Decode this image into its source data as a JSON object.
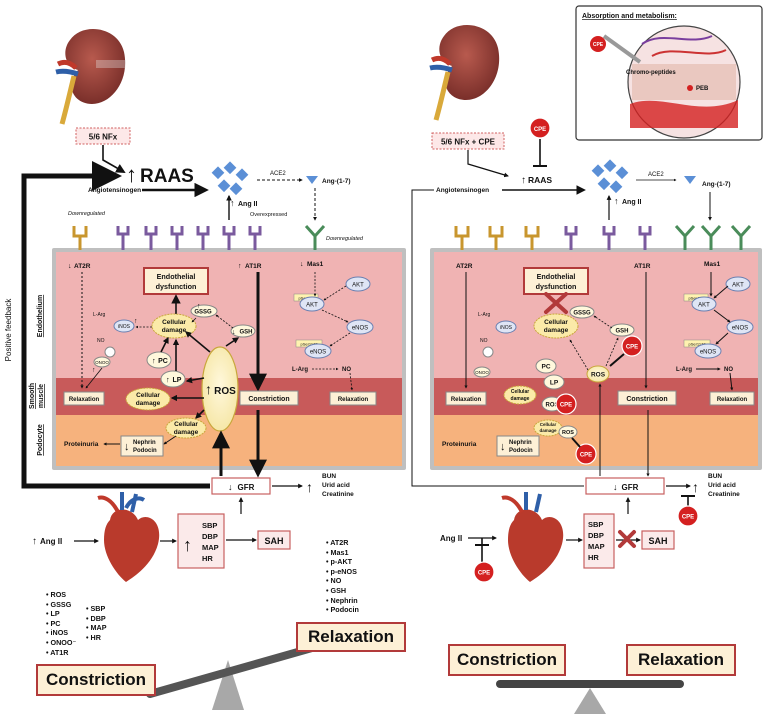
{
  "left": {
    "procedure": "5/6 NFx",
    "raas": "RAAS",
    "angiotensinogen": "Angiotensinogen",
    "ace2": "ACE2",
    "ang17": "Ang-(1-7)",
    "ang2": "Ang II",
    "overexpressed": "Overexpressed",
    "downregulated_left": "Downregulated",
    "downregulated_right": "Downregulated",
    "at2r": "AT2R",
    "at1r": "AT1R",
    "mas1": "Mas1",
    "endothelial_dysfunction_line1": "Endothelial",
    "endothelial_dysfunction_line2": "dysfunction",
    "gssg": "GSSG",
    "gsh": "GSH",
    "cellular": "Cellular",
    "damage": "damage",
    "inos": "iNOS",
    "larg": "L-Arg",
    "no": "NO",
    "onoo": "ONOO",
    "pc": "PC",
    "lp": "LP",
    "ros": "ROS",
    "relaxation_small": "Relaxation",
    "constriction_small": "Constriction",
    "akt": "AKT",
    "p_akt": "pSer473",
    "akt2": "AKT",
    "enos": "eNOS",
    "p_enos": "pSer1177",
    "enos2": "eNOS",
    "larg2": "L-Arg",
    "no2": "NO",
    "relaxation_small2": "Relaxation",
    "proteinuria": "Proteinuria",
    "nephrin": "Nephrin",
    "podocin": "Podocin",
    "gfr": "GFR",
    "bun": "BUN",
    "uric": "Urid acid",
    "creat": "Creatinine",
    "angii_in": "Ang II",
    "sbp": "SBP",
    "dbp": "DBP",
    "map": "MAP",
    "hr": "HR",
    "sah": "SAH",
    "positive_feedback": "Positive feedback",
    "endothelium": "Endothelium",
    "smooth_muscle_1": "Smooth",
    "smooth_muscle_2": "muscle",
    "podocyte": "Podocyte",
    "constriction_list_a": [
      "ROS",
      "GSSG",
      "LP",
      "PC",
      "iNOS",
      "ONOO⁻",
      "AT1R"
    ],
    "constriction_list_b": [
      "SBP",
      "DBP",
      "MAP",
      "HR"
    ],
    "relaxation_list": [
      "AT2R",
      "Mas1",
      "p-AKT",
      "p-eNOS",
      "NO",
      "GSH",
      "Nephrin",
      "Podocin"
    ],
    "constriction_big": "Constriction",
    "relaxation_big": "Relaxation"
  },
  "right": {
    "procedure": "5/6 NFx + CPE",
    "cpe": "CPE",
    "raas": "RAAS",
    "angiotensinogen": "Angiotensinogen",
    "ace2": "ACE2",
    "ang17": "Ang-(1-7)",
    "ang2": "Ang II",
    "at2r": "AT2R",
    "at1r": "AT1R",
    "mas1": "Mas1",
    "endothelial_dysfunction_line1": "Endothelial",
    "endothelial_dysfunction_line2": "dysfunction",
    "gssg": "GSSG",
    "gsh": "GSH",
    "cellular": "Cellular",
    "damage": "damage",
    "inos": "iNOS",
    "larg": "L-Arg",
    "no": "NO",
    "onoo": "ONOO",
    "pc": "PC",
    "lp": "LP",
    "ros": "ROS",
    "relaxation_small": "Relaxation",
    "constriction_small": "Constriction",
    "akt": "AKT",
    "p_akt": "pSer473",
    "akt2": "AKT",
    "enos": "eNOS",
    "p_enos": "pSer1177",
    "enos2": "eNOS",
    "larg2": "L-Arg",
    "no2": "NO",
    "relaxation_small2": "Relaxation",
    "proteinuria": "Proteinuria",
    "nephrin": "Nephrin",
    "podocin": "Podocin",
    "gfr": "GFR",
    "bun": "BUN",
    "uric": "Urid acid",
    "creat": "Creatinine",
    "angii_in": "Ang II",
    "sbp": "SBP",
    "dbp": "DBP",
    "map": "MAP",
    "hr": "HR",
    "sah": "SAH",
    "constriction_big": "Constriction",
    "relaxation_big": "Relaxation",
    "absorption_title": "Absorption and metabolism:",
    "chromo_peptides": "Chromo-peptides",
    "peb": "PEB"
  },
  "colors": {
    "endothelium": "#f0b3b3",
    "smooth_muscle": "#c85a5a",
    "podocyte": "#f6b27d",
    "cell_border": "#9a9a9a",
    "red_accent": "#d42020",
    "receptor_gold": "#c8962e",
    "receptor_purple": "#7a5a9e",
    "receptor_green": "#4a8c5a",
    "ang_blue": "#5b8fd6"
  }
}
